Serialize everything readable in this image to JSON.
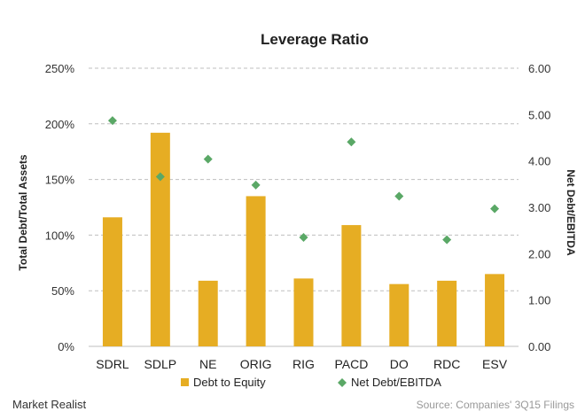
{
  "chart_data": {
    "type": "bar",
    "title": "Leverage Ratio",
    "ylabel_left": "Total Debt/Total Assets",
    "ylabel_right": "Net Debt/EBITDA",
    "categories": [
      "SDRL",
      "SDLP",
      "NE",
      "ORIG",
      "RIG",
      "PACD",
      "DO",
      "RDC",
      "ESV"
    ],
    "series": [
      {
        "name": "Debt to Equity",
        "type": "bar",
        "axis": "left",
        "color": "#e6ad23",
        "values": [
          116,
          192,
          59,
          135,
          61,
          109,
          56,
          59,
          65
        ]
      },
      {
        "name": "Net Debt/EBITDA",
        "type": "scatter",
        "axis": "right",
        "color": "#5aa866",
        "values": [
          4.87,
          3.66,
          4.04,
          3.48,
          2.35,
          4.41,
          3.24,
          2.3,
          2.97
        ]
      }
    ],
    "ylim_left": [
      0,
      250
    ],
    "yticks_left": [
      "0%",
      "50%",
      "100%",
      "150%",
      "200%",
      "250%"
    ],
    "ylim_right": [
      0,
      6
    ],
    "yticks_right": [
      "0.00",
      "1.00",
      "2.00",
      "3.00",
      "4.00",
      "5.00",
      "6.00"
    ],
    "grid": true,
    "legend_position": "bottom"
  },
  "footer": {
    "brand": "Market Realist",
    "source": "Source: Companies' 3Q15 Filings"
  }
}
